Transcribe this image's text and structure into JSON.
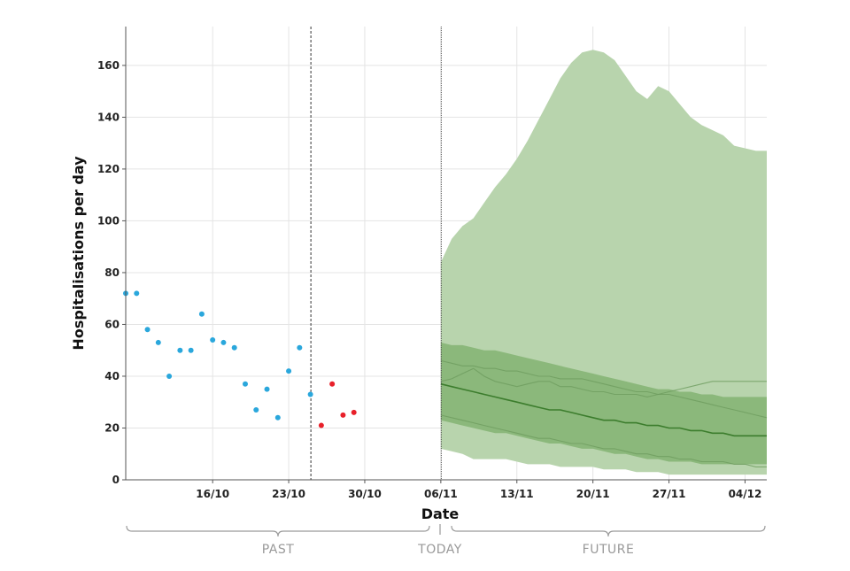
{
  "chart_data": {
    "type": "scatter",
    "xlabel": "Date",
    "ylabel": "Hospitalisations per day",
    "ylim": [
      0,
      175
    ],
    "y_ticks": [
      0,
      20,
      40,
      60,
      80,
      100,
      120,
      140,
      160
    ],
    "x_range_day_of_year": [
      281,
      340
    ],
    "x_ticks": [
      {
        "label": "16/10",
        "day": 289
      },
      {
        "label": "23/10",
        "day": 296
      },
      {
        "label": "30/10",
        "day": 303
      },
      {
        "label": "06/11",
        "day": 310
      },
      {
        "label": "13/11",
        "day": 317
      },
      {
        "label": "20/11",
        "day": 324
      },
      {
        "label": "27/11",
        "day": 331
      },
      {
        "label": "04/12",
        "day": 338
      }
    ],
    "grid": true,
    "colors": {
      "observed": "#2aa7dc",
      "recent": "#e8202a",
      "band_outer": "#b8d4ad",
      "band_mid": "#a5c897",
      "band_inner": "#86b575",
      "median_line": "#3c7d2d",
      "scenario_lines": "#6e9c5f"
    },
    "series": [
      {
        "name": "",
        "points": [
          {
            "day": 281,
            "y": 72
          },
          {
            "day": 282,
            "y": 72
          },
          {
            "day": 283,
            "y": 58
          },
          {
            "day": 284,
            "y": 53
          },
          {
            "day": 285,
            "y": 40
          },
          {
            "day": 286,
            "y": 50
          },
          {
            "day": 287,
            "y": 50
          },
          {
            "day": 288,
            "y": 64
          },
          {
            "day": 289,
            "y": 54
          },
          {
            "day": 290,
            "y": 53
          },
          {
            "day": 291,
            "y": 51
          },
          {
            "day": 292,
            "y": 37
          },
          {
            "day": 293,
            "y": 27
          },
          {
            "day": 294,
            "y": 35
          },
          {
            "day": 295,
            "y": 24
          },
          {
            "day": 296,
            "y": 42
          },
          {
            "day": 297,
            "y": 51
          },
          {
            "day": 298,
            "y": 33
          }
        ]
      },
      {
        "name": "",
        "points": [
          {
            "day": 299,
            "y": 21
          },
          {
            "day": 300,
            "y": 37
          },
          {
            "day": 301,
            "y": 25
          },
          {
            "day": 302,
            "y": 26
          }
        ]
      }
    ],
    "forecast": {
      "days": [
        310,
        311,
        312,
        313,
        314,
        315,
        316,
        317,
        318,
        319,
        320,
        321,
        322,
        323,
        324,
        325,
        326,
        327,
        328,
        329,
        330,
        331,
        332,
        333,
        334,
        335,
        336,
        337,
        338,
        339,
        340
      ],
      "outer_upper": [
        84,
        93,
        98,
        101,
        107,
        113,
        118,
        124,
        131,
        139,
        147,
        155,
        161,
        165,
        166,
        165,
        162,
        156,
        150,
        147,
        152,
        150,
        145,
        140,
        137,
        135,
        133,
        129,
        128,
        127,
        127
      ],
      "outer_lower": [
        12,
        11,
        10,
        8,
        8,
        8,
        8,
        7,
        6,
        6,
        6,
        5,
        5,
        5,
        5,
        4,
        4,
        4,
        3,
        3,
        3,
        2,
        2,
        2,
        2,
        2,
        2,
        2,
        2,
        2,
        2
      ],
      "mid_upper": [
        53,
        52,
        52,
        51,
        50,
        50,
        49,
        48,
        47,
        46,
        45,
        44,
        43,
        42,
        41,
        40,
        39,
        38,
        37,
        36,
        35,
        35,
        34,
        34,
        33,
        33,
        32,
        32,
        32,
        32,
        32
      ],
      "mid_lower": [
        23,
        22,
        21,
        20,
        19,
        18,
        18,
        17,
        16,
        15,
        14,
        14,
        13,
        12,
        12,
        11,
        10,
        10,
        9,
        8,
        8,
        7,
        7,
        7,
        6,
        6,
        6,
        6,
        6,
        6,
        6
      ],
      "median": [
        37,
        36,
        35,
        34,
        33,
        32,
        31,
        30,
        29,
        28,
        27,
        27,
        26,
        25,
        24,
        23,
        23,
        22,
        22,
        21,
        21,
        20,
        20,
        19,
        19,
        18,
        18,
        17,
        17,
        17,
        17
      ],
      "scenarios": [
        [
          46,
          45,
          44,
          44,
          43,
          43,
          42,
          42,
          41,
          40,
          40,
          39,
          39,
          39,
          38,
          37,
          36,
          35,
          34,
          34,
          33,
          33,
          32,
          31,
          30,
          29,
          28,
          27,
          26,
          25,
          24
        ],
        [
          38,
          39,
          41,
          43,
          40,
          38,
          37,
          36,
          37,
          38,
          38,
          36,
          36,
          35,
          34,
          34,
          33,
          33,
          33,
          32,
          33,
          34,
          35,
          36,
          37,
          38,
          38,
          38,
          38,
          38,
          38
        ],
        [
          25,
          24,
          23,
          22,
          21,
          20,
          19,
          18,
          17,
          16,
          16,
          15,
          14,
          14,
          13,
          12,
          12,
          11,
          10,
          10,
          9,
          9,
          8,
          8,
          7,
          7,
          7,
          6,
          6,
          5,
          5
        ]
      ]
    },
    "markers": {
      "data_cutoff_day": 298,
      "today_day": 310
    },
    "phases": {
      "past": "PAST",
      "today": "TODAY",
      "future": "FUTURE"
    }
  }
}
